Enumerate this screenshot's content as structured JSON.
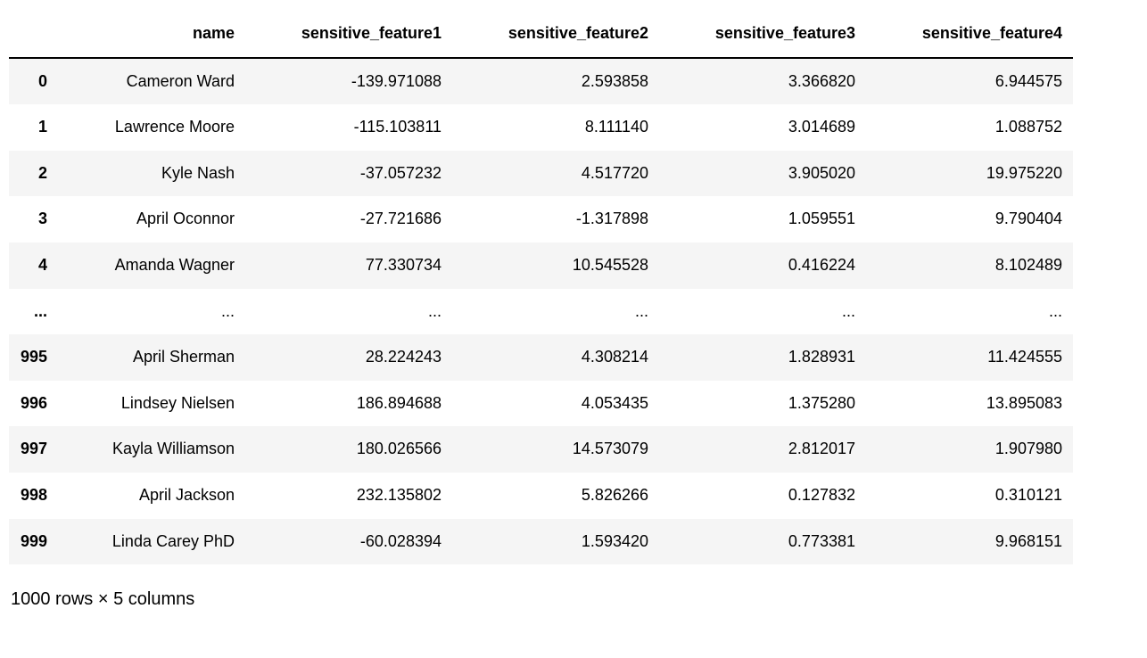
{
  "table": {
    "index_header": "",
    "columns": [
      "name",
      "sensitive_feature1",
      "sensitive_feature2",
      "sensitive_feature3",
      "sensitive_feature4"
    ],
    "rows": [
      {
        "index": "0",
        "cells": [
          "Cameron Ward",
          "-139.971088",
          "2.593858",
          "3.366820",
          "6.944575"
        ]
      },
      {
        "index": "1",
        "cells": [
          "Lawrence Moore",
          "-115.103811",
          "8.111140",
          "3.014689",
          "1.088752"
        ]
      },
      {
        "index": "2",
        "cells": [
          "Kyle Nash",
          "-37.057232",
          "4.517720",
          "3.905020",
          "19.975220"
        ]
      },
      {
        "index": "3",
        "cells": [
          "April Oconnor",
          "-27.721686",
          "-1.317898",
          "1.059551",
          "9.790404"
        ]
      },
      {
        "index": "4",
        "cells": [
          "Amanda Wagner",
          "77.330734",
          "10.545528",
          "0.416224",
          "8.102489"
        ]
      },
      {
        "index": "...",
        "cells": [
          "...",
          "...",
          "...",
          "...",
          "..."
        ]
      },
      {
        "index": "995",
        "cells": [
          "April Sherman",
          "28.224243",
          "4.308214",
          "1.828931",
          "11.424555"
        ]
      },
      {
        "index": "996",
        "cells": [
          "Lindsey Nielsen",
          "186.894688",
          "4.053435",
          "1.375280",
          "13.895083"
        ]
      },
      {
        "index": "997",
        "cells": [
          "Kayla Williamson",
          "180.026566",
          "14.573079",
          "2.812017",
          "1.907980"
        ]
      },
      {
        "index": "998",
        "cells": [
          "April Jackson",
          "232.135802",
          "5.826266",
          "0.127832",
          "0.310121"
        ]
      },
      {
        "index": "999",
        "cells": [
          "Linda Carey PhD",
          "-60.028394",
          "1.593420",
          "0.773381",
          "9.968151"
        ]
      }
    ]
  },
  "footer": "1000 rows × 5 columns",
  "colors": {
    "background": "#ffffff",
    "stripe": "#f5f5f5",
    "header_border": "#000000",
    "text": "#000000"
  }
}
